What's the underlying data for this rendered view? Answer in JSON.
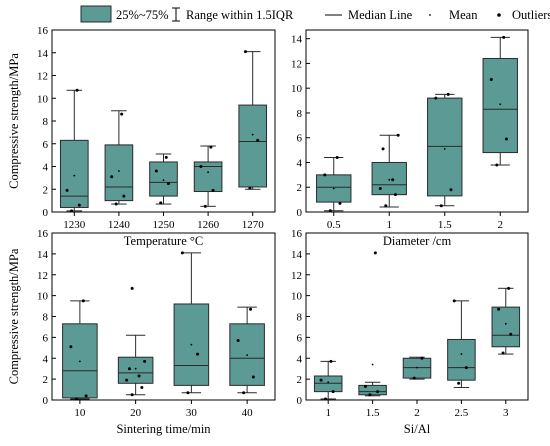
{
  "legend": {
    "box_label": "25%~75%",
    "whisker_label": "Range within 1.5IQR",
    "median_label": "Median Line",
    "mean_label": "Mean",
    "outliers_label": "Outliers"
  },
  "colors": {
    "box_fill": "#5b9a95",
    "box_edge": "#2b2b2b",
    "points": "#000000"
  },
  "chart_data": [
    {
      "type": "box",
      "xlabel": "Temperature °C",
      "ylabel": "Compressive strength/MPa",
      "ylim": [
        0,
        16
      ],
      "yticks": [
        0,
        2,
        4,
        6,
        8,
        10,
        12,
        14,
        16
      ],
      "categories": [
        "1230",
        "1240",
        "1250",
        "1260",
        "1270"
      ],
      "boxes": [
        {
          "min": 0.1,
          "q1": 0.4,
          "median": 1.4,
          "q3": 6.3,
          "max": 10.7,
          "mean": 3.2,
          "points": [
            0.1,
            0.6,
            1.9,
            10.7
          ]
        },
        {
          "min": 0.7,
          "q1": 1.0,
          "median": 2.2,
          "q3": 5.9,
          "max": 8.9,
          "mean": 3.6,
          "points": [
            0.7,
            1.4,
            3.1,
            8.6
          ]
        },
        {
          "min": 0.7,
          "q1": 1.4,
          "median": 2.6,
          "q3": 4.4,
          "max": 5.1,
          "mean": 2.8,
          "points": [
            0.8,
            2.5,
            3.6,
            4.8
          ]
        },
        {
          "min": 0.5,
          "q1": 1.8,
          "median": 4.0,
          "q3": 4.4,
          "max": 5.8,
          "mean": 3.5,
          "points": [
            0.5,
            1.9,
            4.0,
            5.7
          ]
        },
        {
          "min": 2.0,
          "q1": 2.2,
          "median": 6.2,
          "q3": 9.4,
          "max": 14.1,
          "mean": 6.8,
          "points": [
            2.1,
            6.3,
            14.1
          ]
        }
      ]
    },
    {
      "type": "box",
      "xlabel": "Diameter /cm",
      "ylabel": "",
      "ylim": [
        0,
        14.7
      ],
      "yticks": [
        0,
        2,
        4,
        6,
        8,
        10,
        12,
        14
      ],
      "categories": [
        "0.5",
        "1",
        "1.5",
        "2"
      ],
      "boxes": [
        {
          "min": 0.1,
          "q1": 0.8,
          "median": 2.0,
          "q3": 3.0,
          "max": 4.4,
          "mean": 1.9,
          "points": [
            0.1,
            0.7,
            3.0,
            4.4
          ]
        },
        {
          "min": 0.4,
          "q1": 1.4,
          "median": 2.2,
          "q3": 4.0,
          "max": 6.2,
          "mean": 2.6,
          "points": [
            0.5,
            1.4,
            1.9,
            2.6,
            5.1,
            6.2
          ]
        },
        {
          "min": 0.5,
          "q1": 1.3,
          "median": 5.3,
          "q3": 9.2,
          "max": 9.5,
          "mean": 5.1,
          "points": [
            0.5,
            1.8,
            9.2,
            9.5
          ]
        },
        {
          "min": 3.8,
          "q1": 4.8,
          "median": 8.3,
          "q3": 12.4,
          "max": 14.1,
          "mean": 8.7,
          "points": [
            3.8,
            5.9,
            10.7,
            14.1
          ]
        }
      ]
    },
    {
      "type": "box",
      "xlabel": "Sintering time/min",
      "ylabel": "Compressive strength/MPa",
      "ylim": [
        0,
        16
      ],
      "yticks": [
        0,
        2,
        4,
        6,
        8,
        10,
        12,
        14,
        16
      ],
      "categories": [
        "10",
        "20",
        "30",
        "40"
      ],
      "boxes": [
        {
          "min": 0.1,
          "q1": 0.2,
          "median": 2.8,
          "q3": 7.3,
          "max": 9.5,
          "mean": 3.7,
          "points": [
            0.1,
            0.4,
            5.1,
            9.5
          ]
        },
        {
          "min": 0.5,
          "q1": 1.6,
          "median": 2.6,
          "q3": 4.1,
          "max": 6.2,
          "mean": 3.0,
          "points": [
            0.5,
            1.2,
            1.9,
            2.3,
            3.0,
            3.7,
            10.7
          ]
        },
        {
          "min": 0.7,
          "q1": 1.4,
          "median": 3.3,
          "q3": 9.2,
          "max": 14.1,
          "mean": 5.3,
          "points": [
            0.7,
            4.4,
            14.1
          ]
        },
        {
          "min": 0.7,
          "q1": 1.4,
          "median": 4.0,
          "q3": 7.3,
          "max": 8.9,
          "mean": 4.3,
          "points": [
            0.7,
            2.2,
            5.7,
            8.7
          ]
        }
      ]
    },
    {
      "type": "box",
      "xlabel": "Si/Al",
      "ylabel": "",
      "ylim": [
        0,
        16
      ],
      "yticks": [
        0,
        2,
        4,
        6,
        8,
        10,
        12,
        14,
        16
      ],
      "categories": [
        "1",
        "1.5",
        "2",
        "2.5",
        "3"
      ],
      "boxes": [
        {
          "min": 0.1,
          "q1": 0.8,
          "median": 1.6,
          "q3": 2.3,
          "max": 3.7,
          "mean": 1.7,
          "points": [
            0.1,
            0.8,
            1.9,
            3.7
          ]
        },
        {
          "min": 0.4,
          "q1": 0.5,
          "median": 0.8,
          "q3": 1.4,
          "max": 1.7,
          "mean": 3.4,
          "points": [
            0.5,
            0.8,
            1.3,
            14.1
          ]
        },
        {
          "min": 2.0,
          "q1": 2.1,
          "median": 3.1,
          "q3": 4.0,
          "max": 4.1,
          "mean": 3.1,
          "points": [
            2.1,
            4.0
          ]
        },
        {
          "min": 1.2,
          "q1": 1.9,
          "median": 3.1,
          "q3": 5.8,
          "max": 9.5,
          "mean": 4.4,
          "points": [
            1.6,
            3.1,
            9.5
          ]
        },
        {
          "min": 4.4,
          "q1": 5.1,
          "median": 6.2,
          "q3": 8.9,
          "max": 10.7,
          "mean": 7.3,
          "points": [
            4.5,
            6.3,
            8.7,
            10.7
          ]
        }
      ]
    }
  ]
}
